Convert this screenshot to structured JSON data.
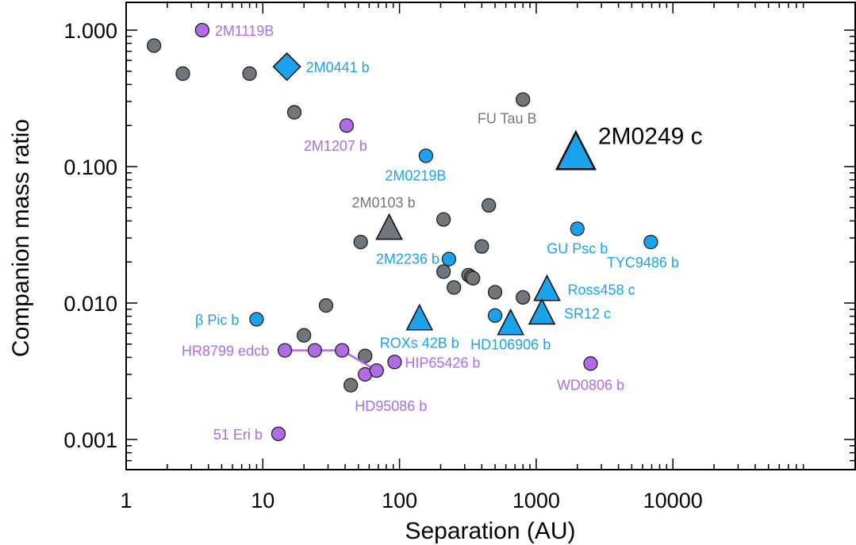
{
  "colors": {
    "gray": "#6f767c",
    "blue": "#1aa3ec",
    "purple": "#b06be5",
    "gray_label": "#70777d",
    "blue_label": "#1aa3ec",
    "purple_label": "#b06be5"
  },
  "chart_data": {
    "type": "scatter",
    "title": "",
    "xlabel": "Separation (AU)",
    "ylabel": "Companion mass ratio",
    "xscale": "log",
    "yscale": "log",
    "xlim": [
      1,
      20000
    ],
    "ylim": [
      0.00055,
      2.0
    ],
    "x_ticks": [
      "1",
      "10",
      "100",
      "1000",
      "10000"
    ],
    "x_tick_values": [
      1,
      10,
      100,
      1000,
      10000
    ],
    "y_ticks": [
      "0.001",
      "0.010",
      "0.100",
      "1.000"
    ],
    "y_tick_values": [
      0.001,
      0.01,
      0.1,
      1.0
    ],
    "series": [
      {
        "marker": "circle",
        "color": "gray",
        "points": [
          {
            "x": 1.6,
            "y": 0.77,
            "label": ""
          },
          {
            "x": 2.6,
            "y": 0.48,
            "label": ""
          },
          {
            "x": 8.0,
            "y": 0.48,
            "label": ""
          },
          {
            "x": 17,
            "y": 0.25,
            "label": ""
          },
          {
            "x": 20,
            "y": 0.0058,
            "label": ""
          },
          {
            "x": 29,
            "y": 0.0096,
            "label": ""
          },
          {
            "x": 44,
            "y": 0.0025,
            "label": ""
          },
          {
            "x": 52,
            "y": 0.028,
            "label": ""
          },
          {
            "x": 56,
            "y": 0.0041,
            "label": ""
          },
          {
            "x": 210,
            "y": 0.041,
            "label": ""
          },
          {
            "x": 210,
            "y": 0.017,
            "label": ""
          },
          {
            "x": 250,
            "y": 0.013,
            "label": ""
          },
          {
            "x": 320,
            "y": 0.016,
            "label": ""
          },
          {
            "x": 335,
            "y": 0.0155,
            "label": ""
          },
          {
            "x": 345,
            "y": 0.0152,
            "label": ""
          },
          {
            "x": 400,
            "y": 0.026,
            "label": ""
          },
          {
            "x": 450,
            "y": 0.052,
            "label": ""
          },
          {
            "x": 500,
            "y": 0.012,
            "label": ""
          },
          {
            "x": 800,
            "y": 0.011,
            "label": ""
          },
          {
            "x": 800,
            "y": 0.31,
            "label": "FU Tau B"
          }
        ]
      },
      {
        "marker": "circle",
        "color": "blue",
        "points": [
          {
            "x": 9,
            "y": 0.0076,
            "label": "β Pic b"
          },
          {
            "x": 156,
            "y": 0.12,
            "label": "2M0219B"
          },
          {
            "x": 230,
            "y": 0.021,
            "label": "2M2236 b"
          },
          {
            "x": 500,
            "y": 0.0081,
            "label": ""
          },
          {
            "x": 2000,
            "y": 0.035,
            "label": "GU Psc b"
          },
          {
            "x": 6900,
            "y": 0.028,
            "label": "TYC9486 b"
          }
        ]
      },
      {
        "marker": "circle",
        "color": "purple",
        "points": [
          {
            "x": 3.6,
            "y": 1.0,
            "label": "2M1119B"
          },
          {
            "x": 41,
            "y": 0.2,
            "label": "2M1207 b"
          },
          {
            "x": 13,
            "y": 0.0011,
            "label": "51 Eri b"
          },
          {
            "x": 92,
            "y": 0.0037,
            "label": "HIP65426 b"
          },
          {
            "x": 56,
            "y": 0.003,
            "label": "HD95086 b"
          },
          {
            "x": 2500,
            "y": 0.0036,
            "label": "WD0806 b"
          }
        ]
      },
      {
        "marker": "circle-line",
        "color": "purple",
        "name": "HR8799 edcb",
        "points": [
          {
            "x": 14.5,
            "y": 0.0045,
            "label": "HR8799 edcb"
          },
          {
            "x": 24,
            "y": 0.0045,
            "label": ""
          },
          {
            "x": 38,
            "y": 0.0045,
            "label": ""
          },
          {
            "x": 68,
            "y": 0.0032,
            "label": ""
          }
        ]
      },
      {
        "marker": "diamond",
        "color": "blue",
        "points": [
          {
            "x": 15,
            "y": 0.54,
            "label": "2M0441 b"
          }
        ]
      },
      {
        "marker": "triangle",
        "color": "gray",
        "points": [
          {
            "x": 84,
            "y": 0.036,
            "label": "2M0103 b"
          }
        ]
      },
      {
        "marker": "triangle",
        "color": "blue",
        "points": [
          {
            "x": 140,
            "y": 0.0078,
            "label": "ROXs 42B b"
          },
          {
            "x": 650,
            "y": 0.0072,
            "label": "HD106906 b"
          },
          {
            "x": 1200,
            "y": 0.0128,
            "label": "Ross458 c"
          },
          {
            "x": 1100,
            "y": 0.0086,
            "label": "SR12 c"
          }
        ]
      },
      {
        "marker": "triangle-large",
        "color": "blue",
        "points": [
          {
            "x": 1950,
            "y": 0.13,
            "label": "2M0249 c"
          }
        ]
      }
    ]
  }
}
